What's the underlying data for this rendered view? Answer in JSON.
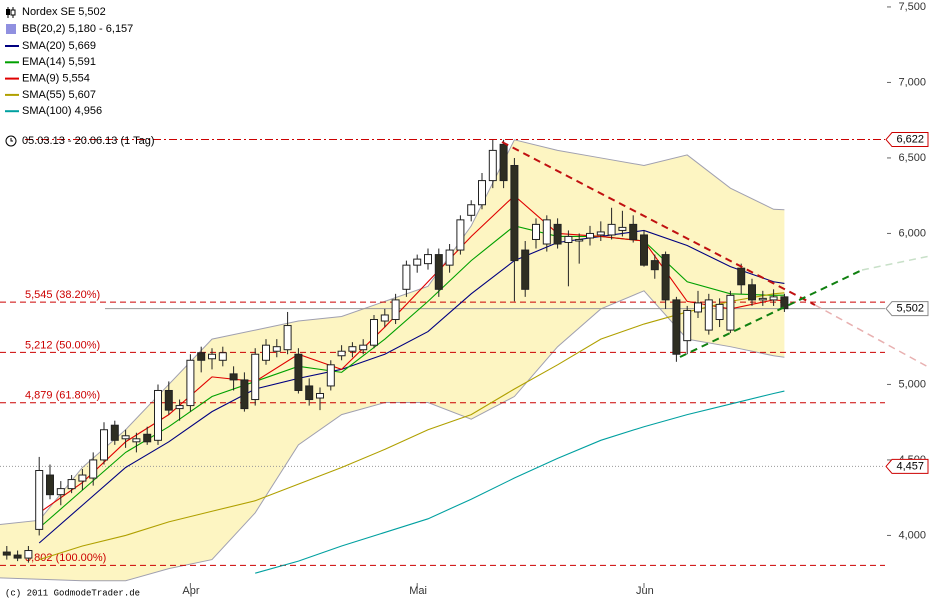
{
  "chart_data": {
    "type": "candlestick",
    "title": "Nordex SE 5,502",
    "period": "05.03.13 - 20.06.13 (1 Tag)",
    "credit": "(c) 2011 GodmodeTrader.de",
    "categories": [
      null,
      null,
      null,
      null,
      null,
      null,
      null,
      null,
      null,
      null,
      null,
      null,
      null,
      null,
      null,
      null,
      null,
      null,
      "Apr",
      null,
      null,
      null,
      null,
      null,
      null,
      null,
      null,
      null,
      null,
      null,
      null,
      null,
      null,
      null,
      null,
      null,
      null,
      null,
      null,
      "Mai",
      null,
      null,
      null,
      null,
      null,
      null,
      null,
      null,
      null,
      null,
      null,
      null,
      null,
      null,
      null,
      null,
      null,
      null,
      null,
      null,
      "Jun",
      null,
      null,
      null,
      null,
      null,
      null,
      null,
      null,
      null,
      null,
      null,
      null,
      null
    ],
    "open": [
      3.92,
      3.89,
      3.87,
      3.85,
      4.04,
      4.4,
      4.27,
      4.31,
      4.36,
      4.38,
      4.5,
      4.73,
      4.64,
      4.62,
      4.67,
      4.63,
      4.96,
      4.84,
      4.86,
      5.21,
      5.17,
      5.16,
      5.07,
      5.03,
      4.9,
      5.16,
      5.22,
      5.23,
      5.2,
      4.99,
      4.91,
      4.99,
      5.19,
      5.22,
      5.23,
      5.26,
      5.42,
      5.43,
      5.63,
      5.79,
      5.8,
      5.86,
      5.79,
      5.89,
      6.12,
      6.19,
      6.35,
      6.59,
      6.45,
      5.89,
      5.96,
      5.93,
      6.06,
      5.94,
      5.95,
      5.97,
      5.99,
      5.99,
      6.02,
      6.06,
      5.99,
      5.82,
      5.86,
      5.56,
      5.29,
      5.48,
      5.36,
      5.43,
      5.36,
      5.77,
      5.66,
      5.56,
      5.56,
      5.58
    ],
    "high": [
      3.95,
      3.93,
      3.9,
      3.93,
      4.52,
      4.47,
      4.36,
      4.4,
      4.44,
      4.55,
      4.75,
      4.76,
      4.7,
      4.68,
      4.72,
      5.0,
      5.02,
      4.9,
      5.2,
      5.25,
      5.24,
      5.25,
      5.12,
      5.08,
      5.24,
      5.3,
      5.3,
      5.48,
      5.24,
      5.04,
      4.98,
      5.16,
      5.26,
      5.28,
      5.3,
      5.46,
      5.5,
      5.6,
      5.82,
      5.86,
      5.9,
      5.9,
      5.93,
      6.12,
      6.22,
      6.4,
      6.62,
      6.62,
      6.5,
      5.95,
      6.1,
      6.12,
      6.1,
      6.02,
      6.0,
      6.05,
      6.08,
      6.17,
      6.15,
      6.12,
      6.02,
      5.86,
      5.88,
      5.58,
      5.52,
      5.62,
      5.6,
      5.57,
      5.62,
      5.8,
      5.7,
      5.62,
      5.63,
      5.6
    ],
    "low": [
      3.86,
      3.84,
      3.83,
      3.82,
      4.0,
      4.24,
      4.2,
      4.28,
      4.3,
      4.33,
      4.47,
      4.6,
      4.58,
      4.55,
      4.6,
      4.6,
      4.8,
      4.76,
      4.82,
      5.08,
      5.1,
      5.12,
      4.96,
      4.82,
      4.86,
      5.13,
      5.18,
      5.2,
      4.94,
      4.86,
      4.83,
      4.96,
      5.16,
      5.18,
      5.2,
      5.24,
      5.38,
      5.4,
      5.58,
      5.74,
      5.76,
      5.58,
      5.74,
      5.86,
      6.08,
      6.16,
      6.3,
      6.3,
      5.55,
      5.58,
      5.9,
      5.88,
      5.9,
      5.65,
      5.8,
      5.92,
      5.95,
      5.96,
      5.98,
      5.94,
      5.78,
      5.7,
      5.5,
      5.15,
      5.2,
      5.44,
      5.33,
      5.38,
      5.34,
      5.6,
      5.52,
      5.52,
      5.52,
      5.48
    ],
    "close": [
      3.89,
      3.87,
      3.85,
      3.9,
      4.43,
      4.27,
      4.31,
      4.37,
      4.4,
      4.5,
      4.7,
      4.63,
      4.66,
      4.64,
      4.62,
      4.96,
      4.83,
      4.86,
      5.16,
      5.16,
      5.2,
      5.21,
      5.03,
      4.84,
      5.2,
      5.26,
      5.25,
      5.39,
      4.96,
      4.9,
      4.94,
      5.13,
      5.22,
      5.25,
      5.26,
      5.43,
      5.46,
      5.56,
      5.79,
      5.83,
      5.86,
      5.63,
      5.89,
      6.09,
      6.19,
      6.35,
      6.55,
      6.35,
      5.82,
      5.63,
      6.06,
      6.09,
      5.93,
      5.98,
      5.96,
      6.0,
      6.01,
      6.06,
      6.04,
      5.96,
      5.79,
      5.76,
      5.56,
      5.2,
      5.49,
      5.54,
      5.56,
      5.53,
      5.59,
      5.66,
      5.56,
      5.57,
      5.58,
      5.502
    ],
    "up_color": "#ffffff",
    "down_color": "#2e2e22",
    "ylim": [
      3.685,
      7.546
    ],
    "yticks": [
      {
        "value": 4,
        "label": "4,000"
      },
      {
        "value": 4.5,
        "label": "4,500"
      },
      {
        "value": 5,
        "label": "5,000"
      },
      {
        "value": 5.5,
        "label": "5,500"
      },
      {
        "value": 6,
        "label": "6,000"
      },
      {
        "value": 6.5,
        "label": "6,500"
      },
      {
        "value": 7,
        "label": "7,000"
      },
      {
        "value": 7.5,
        "label": "7,500"
      }
    ],
    "bands": {
      "name": "BB(20,2) 5,180 - 6,157",
      "color": "#9090e0",
      "fill": "#fdf5c2",
      "x": [
        0,
        4,
        8,
        12,
        16,
        20,
        24,
        28,
        32,
        36,
        40,
        44,
        48,
        52,
        56,
        60,
        64,
        68,
        72,
        73
      ],
      "upper": [
        4.07,
        4.1,
        4.45,
        4.7,
        5.0,
        5.3,
        5.36,
        5.42,
        5.45,
        5.55,
        5.65,
        6.05,
        6.62,
        6.55,
        6.5,
        6.45,
        6.52,
        6.3,
        6.16,
        6.157
      ],
      "lower": [
        3.72,
        3.71,
        3.7,
        3.7,
        3.78,
        3.84,
        4.15,
        4.6,
        4.8,
        4.88,
        4.88,
        4.77,
        4.92,
        5.25,
        5.5,
        5.62,
        5.3,
        5.25,
        5.19,
        5.18
      ]
    },
    "series": [
      {
        "name": "SMA(20) 5,669",
        "color": "#000080",
        "x": [
          4,
          8,
          12,
          16,
          20,
          24,
          28,
          32,
          36,
          40,
          44,
          48,
          52,
          56,
          60,
          64,
          68,
          72,
          73
        ],
        "values": [
          3.95,
          4.2,
          4.45,
          4.62,
          4.82,
          4.97,
          5.04,
          5.1,
          5.2,
          5.35,
          5.6,
          5.82,
          5.94,
          5.98,
          6.02,
          5.92,
          5.78,
          5.68,
          5.669
        ]
      },
      {
        "name": "EMA(14) 5,591",
        "color": "#00a000",
        "x": [
          4,
          8,
          12,
          16,
          20,
          24,
          28,
          32,
          36,
          40,
          44,
          48,
          52,
          56,
          60,
          64,
          68,
          72,
          73
        ],
        "values": [
          4.05,
          4.3,
          4.55,
          4.72,
          4.92,
          5.02,
          5.12,
          5.08,
          5.3,
          5.55,
          5.82,
          6.05,
          5.98,
          5.98,
          5.95,
          5.68,
          5.6,
          5.59,
          5.591
        ]
      },
      {
        "name": "EMA(9) 5,554",
        "color": "#e00000",
        "x": [
          4,
          8,
          12,
          16,
          20,
          24,
          28,
          32,
          36,
          40,
          44,
          48,
          52,
          56,
          60,
          64,
          68,
          72,
          73
        ],
        "values": [
          4.15,
          4.35,
          4.62,
          4.8,
          5.05,
          5.02,
          5.2,
          5.1,
          5.38,
          5.68,
          5.98,
          6.25,
          6.0,
          5.98,
          5.95,
          5.55,
          5.5,
          5.56,
          5.554
        ]
      },
      {
        "name": "SMA(55) 5,607",
        "color": "#b0a000",
        "x": [
          4,
          8,
          12,
          16,
          20,
          24,
          28,
          32,
          36,
          40,
          44,
          48,
          52,
          56,
          60,
          64,
          68,
          72,
          73
        ],
        "values": [
          3.84,
          3.93,
          4.0,
          4.09,
          4.16,
          4.23,
          4.34,
          4.45,
          4.57,
          4.7,
          4.8,
          4.97,
          5.13,
          5.3,
          5.4,
          5.48,
          5.55,
          5.6,
          5.607
        ]
      },
      {
        "name": "SMA(100) 4,956",
        "color": "#00a0a0",
        "x": [
          24,
          28,
          32,
          36,
          40,
          44,
          48,
          52,
          56,
          60,
          64,
          68,
          72,
          73
        ],
        "values": [
          3.75,
          3.83,
          3.93,
          4.02,
          4.11,
          4.24,
          4.38,
          4.51,
          4.63,
          4.72,
          4.8,
          4.87,
          4.94,
          4.956
        ]
      }
    ],
    "resistance": {
      "value": 6.622,
      "label": "6,622"
    },
    "support": {
      "value": 4.457,
      "label": "4,457"
    },
    "last": {
      "value": 5.502,
      "label": "5,502"
    },
    "fibonacci": [
      {
        "value": 5.545,
        "label": "5,545 (38.20%)"
      },
      {
        "value": 5.212,
        "label": "5,212 (50.00%)"
      },
      {
        "value": 4.879,
        "label": "4,879 (61.80%)"
      },
      {
        "value": 3.802,
        "label": "3,802 (100.00%)"
      }
    ],
    "level_color": "#cc0000"
  }
}
